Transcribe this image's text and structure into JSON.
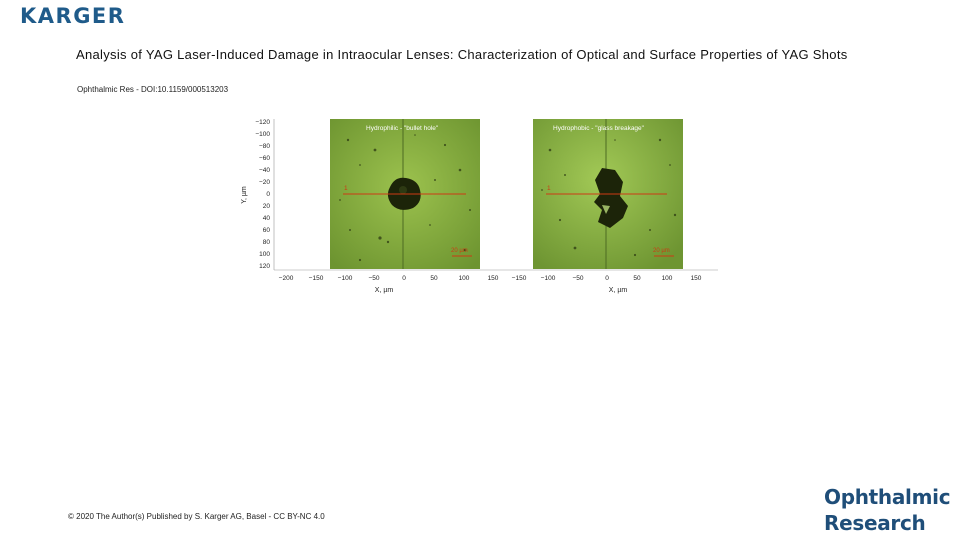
{
  "publisher": {
    "logo_text": "KARGER"
  },
  "title": "Analysis of YAG Laser-Induced Damage in Intraocular Lenses: Characterization of Optical and Surface Properties of YAG Shots",
  "citation": "Ophthalmic Res - DOI:10.1159/000513203",
  "footer": "© 2020 The Author(s) Published by S. Karger AG, Basel - CC BY-NC 4.0",
  "journal": {
    "line1": "Ophthalmic",
    "line2": "Research"
  },
  "figure": {
    "y_axis_label": "Y, µm",
    "y_ticks": [
      "−120",
      "−100",
      "−80",
      "−60",
      "−40",
      "−20",
      "0",
      "20",
      "40",
      "60",
      "80",
      "100",
      "120"
    ],
    "x_ticks": [
      "−200",
      "−150",
      "−100",
      "−50",
      "0",
      "50",
      "100",
      "150",
      "−150",
      "−100",
      "−50",
      "0",
      "50",
      "100",
      "150"
    ],
    "panels": [
      {
        "title": "Hydrophilic - \"bullet hole\"",
        "scale_bar": "20 µm",
        "x_label": "X, µm",
        "marker": "1"
      },
      {
        "title": "Hydrophobic - \"glass breakage\"",
        "scale_bar": "20 µm",
        "x_label": "X, µm",
        "marker": "1"
      }
    ],
    "colors": {
      "background": "#7fa83c",
      "line": "#cc3a14",
      "damage": "#1c2409"
    }
  }
}
